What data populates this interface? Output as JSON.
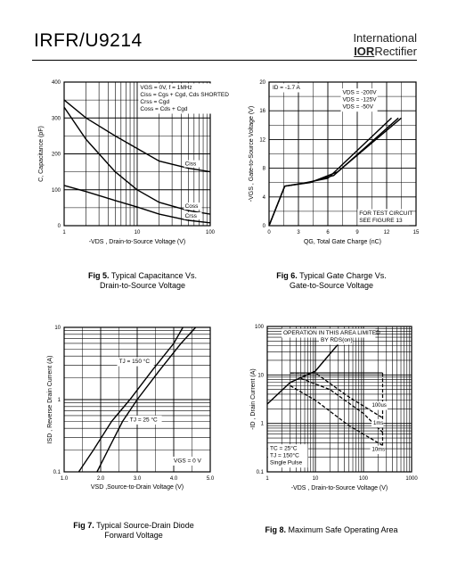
{
  "header": {
    "part_number": "IRFR/U9214",
    "brand_line1": "International",
    "brand_logo": "IOR",
    "brand_line2": "Rectifier"
  },
  "captions": [
    {
      "num": "Fig 5.",
      "text1": "Typical Capacitance Vs.",
      "text2": "Drain-to-Source Voltage"
    },
    {
      "num": "Fig 6.",
      "text1": "Typical Gate Charge Vs.",
      "text2": "Gate-to-Source Voltage"
    },
    {
      "num": "Fig 7.",
      "text1": "Typical Source-Drain Diode",
      "text2": "Forward Voltage"
    },
    {
      "num": "Fig 8.",
      "text1": "Maximum Safe Operating Area",
      "text2": ""
    }
  ],
  "chart_data": [
    {
      "id": "fig5",
      "type": "line",
      "xscale": "log",
      "xlim": [
        1,
        100
      ],
      "ylim": [
        0,
        400
      ],
      "xticks": [
        "1",
        "10",
        "100"
      ],
      "yticks": [
        "0",
        "100",
        "200",
        "300",
        "400"
      ],
      "xlabel": "-VDS , Drain-to-Source Voltage (V)",
      "ylabel": "C, Capacitance (pF)",
      "conditions": [
        "VGS = 0V,      f = 1MHz",
        "Ciss = Cgs + Cgd,  Cds  SHORTED",
        "Crss = Cgd",
        "Coss = Cds + Cgd"
      ],
      "series": [
        {
          "name": "Ciss",
          "x": [
            1,
            2,
            5,
            10,
            20,
            50,
            100
          ],
          "y": [
            350,
            300,
            250,
            215,
            180,
            160,
            150
          ]
        },
        {
          "name": "Coss",
          "x": [
            1,
            2,
            5,
            10,
            20,
            50,
            100
          ],
          "y": [
            330,
            240,
            150,
            100,
            65,
            42,
            32
          ]
        },
        {
          "name": "Crss",
          "x": [
            1,
            2,
            5,
            10,
            20,
            50,
            100
          ],
          "y": [
            112,
            95,
            70,
            52,
            32,
            15,
            8
          ]
        }
      ]
    },
    {
      "id": "fig6",
      "type": "line",
      "xlim": [
        0,
        15
      ],
      "ylim": [
        0,
        20
      ],
      "xticks": [
        "0",
        "3",
        "6",
        "9",
        "12",
        "15"
      ],
      "yticks": [
        "0",
        "4",
        "8",
        "12",
        "16",
        "20"
      ],
      "xlabel": "QG, Total Gate Charge (nC)",
      "ylabel": "-VGS , Gate-to-Source Voltage (V)",
      "id_label": "ID = -1.7 A",
      "note": [
        "FOR TEST CIRCUIT",
        "SEE FIGURE 13"
      ],
      "series": [
        {
          "name": "VDS = -200V",
          "x": [
            0,
            1.6,
            4.2,
            7.0,
            13.5
          ],
          "y": [
            0,
            5.5,
            6.0,
            7.5,
            15.0
          ]
        },
        {
          "name": "VDS = -125V",
          "x": [
            0,
            1.6,
            4.0,
            6.6,
            13.2
          ],
          "y": [
            0,
            5.5,
            6.0,
            7.0,
            15.0
          ]
        },
        {
          "name": "VDS = -50V",
          "x": [
            0,
            1.6,
            3.8,
            6.0,
            12.5
          ],
          "y": [
            0,
            5.5,
            6.0,
            6.6,
            15.0
          ]
        }
      ]
    },
    {
      "id": "fig7",
      "type": "line",
      "xlim": [
        1.0,
        5.0
      ],
      "yscale": "log",
      "ylim": [
        0.1,
        10
      ],
      "xticks": [
        "1.0",
        "2.0",
        "3.0",
        "4.0",
        "5.0"
      ],
      "yticks": [
        "0.1",
        "1",
        "10"
      ],
      "xlabel": "VSD ,Source-to-Drain Voltage (V)",
      "ylabel": "ISD , Reverse Drain Current (A)",
      "condition": "VGS = 0 V",
      "series": [
        {
          "name": "TJ = 150 °C",
          "x": [
            1.4,
            1.8,
            2.3,
            2.8,
            3.4,
            4.0,
            4.25
          ],
          "y": [
            0.1,
            0.2,
            0.5,
            1.0,
            2.5,
            6.0,
            10
          ]
        },
        {
          "name": "TJ = 25 °C",
          "x": [
            1.9,
            2.2,
            2.6,
            3.0,
            3.6,
            4.2,
            4.6
          ],
          "y": [
            0.1,
            0.2,
            0.5,
            1.0,
            2.5,
            6.0,
            10
          ]
        }
      ]
    },
    {
      "id": "fig8",
      "type": "line",
      "xscale": "log",
      "xlim": [
        1,
        1000
      ],
      "yscale": "log",
      "ylim": [
        0.1,
        100
      ],
      "xticks": [
        "1",
        "10",
        "100",
        "1000"
      ],
      "yticks": [
        "0.1",
        "1",
        "10",
        "100"
      ],
      "xlabel": "-VDS , Drain-to-Source Voltage (V)",
      "ylabel": "-ID , Drain Current (A)",
      "limit_label": [
        "OPERATION IN THIS AREA LIMITED",
        "BY RDS(on)"
      ],
      "conditions": [
        "TC = 25°C",
        "TJ = 150°C",
        "Single Pulse"
      ],
      "series": [
        {
          "name": "RDS(on) limit",
          "x": [
            1,
            3,
            10,
            45
          ],
          "y": [
            2.5,
            7,
            12,
            70
          ]
        },
        {
          "name": "100us",
          "x": [
            3,
            10,
            50,
            250
          ],
          "y": [
            11,
            11,
            3.5,
            1.3
          ]
        },
        {
          "name": "1ms",
          "x": [
            5,
            20,
            100,
            250
          ],
          "y": [
            8.5,
            5,
            1.6,
            0.65
          ]
        },
        {
          "name": "10ms",
          "x": [
            3,
            10,
            50,
            250
          ],
          "y": [
            6,
            3,
            0.9,
            0.35
          ]
        }
      ]
    }
  ]
}
